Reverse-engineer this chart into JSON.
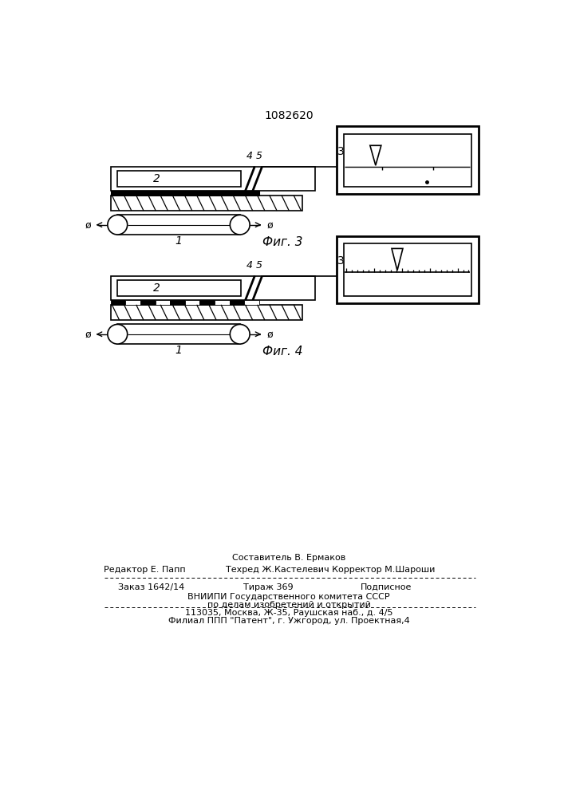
{
  "patent_number": "1082620",
  "background_color": "#ffffff",
  "line_color": "#000000",
  "fig3_label": "Фиг. 3",
  "fig4_label": "Фиг. 4",
  "label1": "1",
  "label2": "2",
  "label3": "3",
  "label4": "4",
  "label5": "5",
  "footer_line1_left": "Редактор Е. Папп",
  "footer_line1_center": "Составитель В. Ермаков",
  "footer_line1_right": "Техред Ж.Кастелевич Корректор М.Шароши",
  "footer_line2_col1": "Заказ 1642/14",
  "footer_line2_col2": "Тираж 369",
  "footer_line2_col3": "Подписное",
  "footer_line3": "ВНИИПИ Государственного комитета СССР",
  "footer_line4": "по делам изобретений и открытий",
  "footer_line5": "113035, Москва, Ж-35, Раушская наб., д. 4/5",
  "footer_line6": "Филиал ППП \"Патент\", г. Ужгород, ул. Проектная,4"
}
